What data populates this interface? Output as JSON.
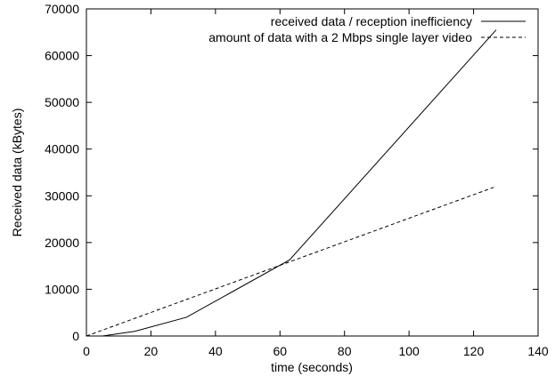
{
  "chart_data": {
    "type": "line",
    "title": "",
    "xlabel": "time (seconds)",
    "ylabel": "Received data (kBytes)",
    "xlim": [
      0,
      140
    ],
    "ylim": [
      0,
      70000
    ],
    "x_ticks": [
      "0",
      "20",
      "40",
      "60",
      "80",
      "100",
      "120",
      "140"
    ],
    "y_ticks": [
      "0",
      "10000",
      "20000",
      "30000",
      "40000",
      "50000",
      "60000",
      "70000"
    ],
    "grid": false,
    "legend_position": "top-right",
    "series": [
      {
        "name": "received data / reception inefficiency",
        "style": "solid",
        "color": "#000000",
        "x": [
          0,
          5,
          15,
          31,
          63,
          127
        ],
        "y": [
          0,
          0,
          1000,
          4000,
          16300,
          65500
        ]
      },
      {
        "name": "amount of data with a 2 Mbps single layer video",
        "style": "dashed",
        "color": "#000000",
        "x": [
          0,
          127
        ],
        "y": [
          0,
          32000
        ]
      }
    ]
  }
}
